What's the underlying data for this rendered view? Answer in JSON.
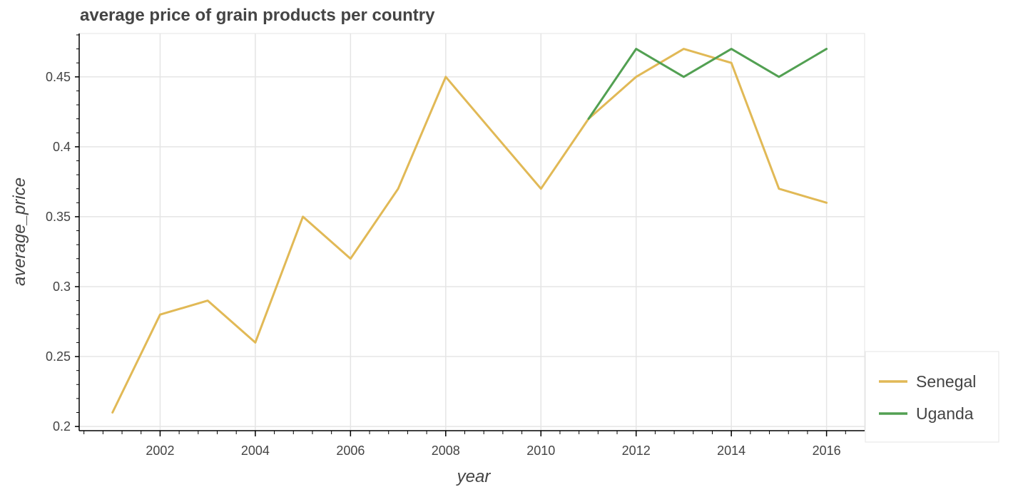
{
  "chart_data": {
    "type": "line",
    "title": "average price of grain products per country",
    "xlabel": "year",
    "ylabel": "average_price",
    "xlim": [
      2000.3,
      2016.8
    ],
    "ylim": [
      0.197,
      0.481
    ],
    "x_ticks": [
      2002,
      2004,
      2006,
      2008,
      2010,
      2012,
      2014,
      2016
    ],
    "x_tick_labels": [
      "2002",
      "2004",
      "2006",
      "2008",
      "2010",
      "2012",
      "2014",
      "2016"
    ],
    "y_ticks": [
      0.2,
      0.25,
      0.3,
      0.35,
      0.4,
      0.45
    ],
    "y_tick_labels": [
      "0.2",
      "0.25",
      "0.3",
      "0.35",
      "0.4",
      "0.45"
    ],
    "grid": true,
    "legend_position": "bottom-right-outside",
    "series": [
      {
        "name": "Senegal",
        "color": "#e1b956",
        "x": [
          2001,
          2002,
          2003,
          2004,
          2005,
          2006,
          2007,
          2008,
          2009,
          2010,
          2011,
          2012,
          2013,
          2014,
          2015,
          2016
        ],
        "y": [
          0.21,
          0.28,
          0.29,
          0.26,
          0.35,
          0.32,
          0.37,
          0.45,
          0.41,
          0.37,
          0.42,
          0.45,
          0.47,
          0.46,
          0.37,
          0.36
        ]
      },
      {
        "name": "Uganda",
        "color": "#52a052",
        "x": [
          2011,
          2012,
          2013,
          2014,
          2015,
          2016
        ],
        "y": [
          0.42,
          0.47,
          0.45,
          0.47,
          0.45,
          0.47
        ]
      }
    ]
  }
}
